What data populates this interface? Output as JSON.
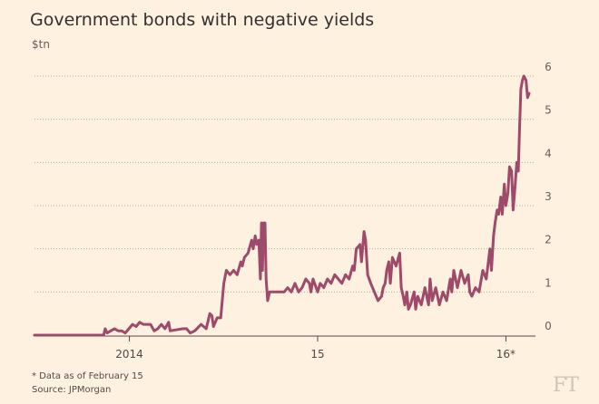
{
  "chart_data": {
    "type": "line",
    "title": "Government bonds with negative yields",
    "unit_label": "$tn",
    "xlabel": "",
    "ylabel": "",
    "ylim": [
      0,
      6
    ],
    "y_ticks": [
      0,
      1,
      2,
      3,
      4,
      5,
      6
    ],
    "x_range": [
      "2013-07-01",
      "2016-02-15"
    ],
    "x_ticks": [
      {
        "date": "2014-01-01",
        "label": "2014"
      },
      {
        "date": "2015-01-01",
        "label": "15"
      },
      {
        "date": "2016-01-01",
        "label": "16*"
      }
    ],
    "grid": "horizontal-dotted",
    "legend": "none",
    "line_color": "#9e4a6a",
    "series": [
      {
        "points": [
          [
            "2013-07-01",
            0
          ],
          [
            "2013-11-12",
            0
          ],
          [
            "2013-11-15",
            0.15
          ],
          [
            "2013-11-19",
            0.05
          ],
          [
            "2013-11-26",
            0.1
          ],
          [
            "2013-12-03",
            0.15
          ],
          [
            "2013-12-10",
            0.1
          ],
          [
            "2013-12-17",
            0.1
          ],
          [
            "2013-12-24",
            0.05
          ],
          [
            "2014-01-07",
            0.25
          ],
          [
            "2014-01-14",
            0.2
          ],
          [
            "2014-01-21",
            0.3
          ],
          [
            "2014-01-28",
            0.25
          ],
          [
            "2014-02-11",
            0.25
          ],
          [
            "2014-02-18",
            0.1
          ],
          [
            "2014-02-25",
            0.15
          ],
          [
            "2014-03-04",
            0.25
          ],
          [
            "2014-03-11",
            0.15
          ],
          [
            "2014-03-18",
            0.3
          ],
          [
            "2014-03-21",
            0.1
          ],
          [
            "2014-04-15",
            0.15
          ],
          [
            "2014-04-22",
            0.15
          ],
          [
            "2014-04-29",
            0.05
          ],
          [
            "2014-05-08",
            0.1
          ],
          [
            "2014-05-20",
            0.25
          ],
          [
            "2014-05-30",
            0.15
          ],
          [
            "2014-06-06",
            0.5
          ],
          [
            "2014-06-10",
            0.45
          ],
          [
            "2014-06-13",
            0.2
          ],
          [
            "2014-06-20",
            0.4
          ],
          [
            "2014-06-27",
            0.4
          ],
          [
            "2014-07-03",
            1.2
          ],
          [
            "2014-07-08",
            1.5
          ],
          [
            "2014-07-15",
            1.4
          ],
          [
            "2014-07-22",
            1.5
          ],
          [
            "2014-07-29",
            1.4
          ],
          [
            "2014-08-05",
            1.7
          ],
          [
            "2014-08-08",
            1.6
          ],
          [
            "2014-08-12",
            1.8
          ],
          [
            "2014-08-19",
            1.9
          ],
          [
            "2014-08-26",
            2.2
          ],
          [
            "2014-08-29",
            2.0
          ],
          [
            "2014-09-02",
            2.3
          ],
          [
            "2014-09-05",
            2.1
          ],
          [
            "2014-09-09",
            2.2
          ],
          [
            "2014-09-12",
            1.3
          ],
          [
            "2014-09-14",
            2.6
          ],
          [
            "2014-09-16",
            1.5
          ],
          [
            "2014-09-18",
            2.6
          ],
          [
            "2014-09-21",
            2.6
          ],
          [
            "2014-09-23",
            1.3
          ],
          [
            "2014-09-26",
            0.8
          ],
          [
            "2014-09-30",
            1.0
          ],
          [
            "2014-10-07",
            1.0
          ],
          [
            "2014-10-28",
            1.0
          ],
          [
            "2014-11-04",
            1.1
          ],
          [
            "2014-11-11",
            1.0
          ],
          [
            "2014-11-18",
            1.2
          ],
          [
            "2014-11-25",
            1.0
          ],
          [
            "2014-12-02",
            1.1
          ],
          [
            "2014-12-09",
            1.3
          ],
          [
            "2014-12-16",
            1.2
          ],
          [
            "2014-12-19",
            1.0
          ],
          [
            "2014-12-23",
            1.3
          ],
          [
            "2015-01-01",
            1.0
          ],
          [
            "2015-01-06",
            1.2
          ],
          [
            "2015-01-13",
            1.1
          ],
          [
            "2015-01-20",
            1.3
          ],
          [
            "2015-01-27",
            1.2
          ],
          [
            "2015-02-03",
            1.4
          ],
          [
            "2015-02-10",
            1.3
          ],
          [
            "2015-02-17",
            1.2
          ],
          [
            "2015-02-24",
            1.4
          ],
          [
            "2015-03-03",
            1.3
          ],
          [
            "2015-03-10",
            1.6
          ],
          [
            "2015-03-13",
            1.5
          ],
          [
            "2015-03-17",
            2.0
          ],
          [
            "2015-03-24",
            2.1
          ],
          [
            "2015-03-27",
            1.7
          ],
          [
            "2015-04-01",
            2.4
          ],
          [
            "2015-04-04",
            2.2
          ],
          [
            "2015-04-08",
            1.4
          ],
          [
            "2015-04-14",
            1.2
          ],
          [
            "2015-04-21",
            1.0
          ],
          [
            "2015-04-28",
            0.8
          ],
          [
            "2015-05-05",
            0.9
          ],
          [
            "2015-05-08",
            1.1
          ],
          [
            "2015-05-12",
            1.2
          ],
          [
            "2015-05-15",
            1.5
          ],
          [
            "2015-05-19",
            1.7
          ],
          [
            "2015-05-22",
            1.2
          ],
          [
            "2015-05-26",
            1.8
          ],
          [
            "2015-06-02",
            1.6
          ],
          [
            "2015-06-09",
            1.9
          ],
          [
            "2015-06-12",
            1.1
          ],
          [
            "2015-06-16",
            0.9
          ],
          [
            "2015-06-19",
            0.7
          ],
          [
            "2015-06-23",
            1.0
          ],
          [
            "2015-06-26",
            0.6
          ],
          [
            "2015-06-30",
            0.7
          ],
          [
            "2015-07-07",
            1.0
          ],
          [
            "2015-07-10",
            0.6
          ],
          [
            "2015-07-14",
            0.9
          ],
          [
            "2015-07-21",
            0.7
          ],
          [
            "2015-07-28",
            1.1
          ],
          [
            "2015-08-04",
            0.7
          ],
          [
            "2015-08-07",
            1.3
          ],
          [
            "2015-08-11",
            0.8
          ],
          [
            "2015-08-18",
            1.1
          ],
          [
            "2015-08-25",
            0.7
          ],
          [
            "2015-09-01",
            1.0
          ],
          [
            "2015-09-08",
            0.8
          ],
          [
            "2015-09-15",
            1.3
          ],
          [
            "2015-09-18",
            1.0
          ],
          [
            "2015-09-22",
            1.5
          ],
          [
            "2015-09-29",
            1.1
          ],
          [
            "2015-10-06",
            1.5
          ],
          [
            "2015-10-13",
            1.2
          ],
          [
            "2015-10-20",
            1.4
          ],
          [
            "2015-10-23",
            1.0
          ],
          [
            "2015-10-27",
            0.9
          ],
          [
            "2015-11-03",
            1.1
          ],
          [
            "2015-11-10",
            1.0
          ],
          [
            "2015-11-17",
            1.5
          ],
          [
            "2015-11-24",
            1.3
          ],
          [
            "2015-12-01",
            2.0
          ],
          [
            "2015-12-04",
            1.5
          ],
          [
            "2015-12-08",
            2.3
          ],
          [
            "2015-12-11",
            2.6
          ],
          [
            "2015-12-15",
            2.9
          ],
          [
            "2015-12-18",
            2.8
          ],
          [
            "2015-12-22",
            3.2
          ],
          [
            "2015-12-25",
            2.8
          ],
          [
            "2015-12-29",
            3.5
          ],
          [
            "2016-01-01",
            3.0
          ],
          [
            "2016-01-05",
            3.3
          ],
          [
            "2016-01-08",
            3.9
          ],
          [
            "2016-01-12",
            3.8
          ],
          [
            "2016-01-15",
            2.9
          ],
          [
            "2016-01-19",
            3.5
          ],
          [
            "2016-01-22",
            4.0
          ],
          [
            "2016-01-25",
            3.8
          ],
          [
            "2016-01-27",
            4.6
          ],
          [
            "2016-01-30",
            5.7
          ],
          [
            "2016-02-02",
            5.9
          ],
          [
            "2016-02-05",
            6.0
          ],
          [
            "2016-02-09",
            5.9
          ],
          [
            "2016-02-12",
            5.5
          ],
          [
            "2016-02-15",
            5.6
          ]
        ]
      }
    ],
    "footnotes": [
      "* Data as of February 15",
      "Source: JPMorgan"
    ]
  },
  "brand": {
    "logo_text": "FT"
  }
}
